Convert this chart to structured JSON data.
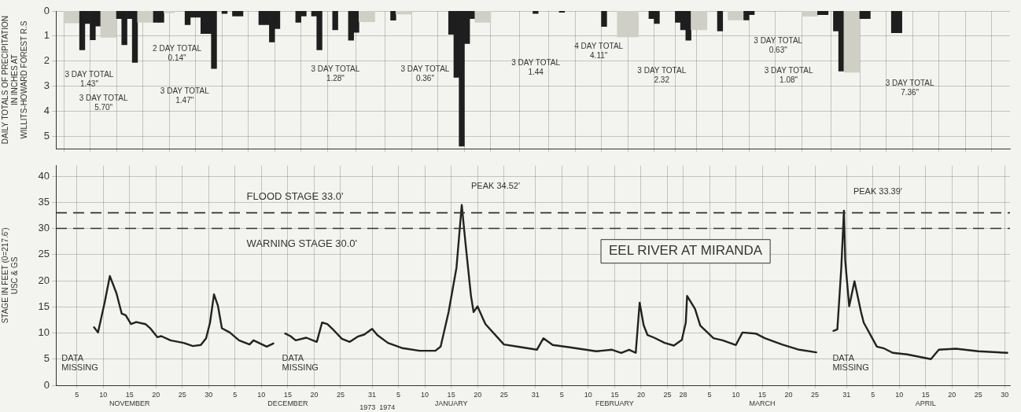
{
  "chart_data": [
    {
      "type": "bar",
      "ylabel": "DAILY TOTALS OF PRECIPITATION\nIN INCHES AT\nWILLITS-HOWARD FOREST R.S",
      "xlim": [
        "1973-11-01",
        "1974-05-01"
      ],
      "xticks": [
        {
          "value": "1973-11-05",
          "label": null
        },
        {
          "value": "1973-11-10",
          "label": null
        },
        {
          "value": "1973-11-15",
          "label": null
        },
        {
          "value": "1973-11-20",
          "label": null
        },
        {
          "value": "1973-11-25",
          "label": null
        },
        {
          "value": "1973-11-30",
          "label": null
        },
        {
          "value": "1973-12-05",
          "label": null
        },
        {
          "value": "1973-12-10",
          "label": null
        },
        {
          "value": "1973-12-15",
          "label": null
        },
        {
          "value": "1973-12-20",
          "label": null
        },
        {
          "value": "1973-12-25",
          "label": null
        },
        {
          "value": "1973-12-31",
          "label": null
        },
        {
          "value": "1974-01-05",
          "label": null
        },
        {
          "value": "1974-01-10",
          "label": null
        },
        {
          "value": "1974-01-15",
          "label": null
        },
        {
          "value": "1974-01-20",
          "label": null
        },
        {
          "value": "1974-01-25",
          "label": null
        },
        {
          "value": "1974-01-31",
          "label": null
        },
        {
          "value": "1974-02-05",
          "label": null
        },
        {
          "value": "1974-02-10",
          "label": null
        },
        {
          "value": "1974-02-15",
          "label": null
        },
        {
          "value": "1974-02-20",
          "label": null
        },
        {
          "value": "1974-02-25",
          "label": null
        },
        {
          "value": "1974-02-28",
          "label": null
        },
        {
          "value": "1974-03-05",
          "label": null
        },
        {
          "value": "1974-03-10",
          "label": null
        },
        {
          "value": "1974-03-15",
          "label": null
        },
        {
          "value": "1974-03-20",
          "label": null
        },
        {
          "value": "1974-03-25",
          "label": null
        },
        {
          "value": "1974-03-31",
          "label": null
        },
        {
          "value": "1974-04-05",
          "label": null
        },
        {
          "value": "1974-04-10",
          "label": null
        },
        {
          "value": "1974-04-15",
          "label": null
        },
        {
          "value": "1974-04-20",
          "label": null
        },
        {
          "value": "1974-04-25",
          "label": null
        },
        {
          "value": "1974-04-30",
          "label": null
        }
      ],
      "ylim": [
        5.5,
        0
      ],
      "yticks": [
        0,
        1,
        2,
        3,
        4,
        5
      ],
      "grid": true,
      "tick_labels": "y",
      "x": [
        "1973-11-03",
        "1973-11-04",
        "1973-11-05",
        "1973-11-06",
        "1973-11-07",
        "1973-11-08",
        "1973-11-09",
        "1973-11-10",
        "1973-11-11",
        "1973-11-12",
        "1973-11-13",
        "1973-11-14",
        "1973-11-15",
        "1973-11-16",
        "1973-11-17",
        "1973-11-18",
        "1973-11-19",
        "1973-11-20",
        "1973-11-21",
        "1973-11-22",
        "1973-11-23",
        "1973-11-26",
        "1973-11-27",
        "1973-11-28",
        "1973-11-29",
        "1973-11-30",
        "1973-12-01",
        "1973-12-03",
        "1973-12-05",
        "1973-12-06",
        "1973-12-10",
        "1973-12-11",
        "1973-12-12",
        "1973-12-13",
        "1973-12-17",
        "1973-12-18",
        "1973-12-20",
        "1973-12-21",
        "1973-12-24",
        "1973-12-27",
        "1973-12-28",
        "1973-12-29",
        "1973-12-30",
        "1973-12-31",
        "1974-01-04",
        "1974-01-05",
        "1974-01-06",
        "1974-01-07",
        "1974-01-15",
        "1974-01-16",
        "1974-01-17",
        "1974-01-18",
        "1974-01-19",
        "1974-01-20",
        "1974-01-21",
        "1974-01-22",
        "1974-01-31",
        "1974-02-05",
        "1974-02-13",
        "1974-02-16",
        "1974-02-17",
        "1974-02-18",
        "1974-02-19",
        "1974-02-22",
        "1974-02-23",
        "1974-02-27",
        "1974-02-28",
        "1974-03-01",
        "1974-03-02",
        "1974-03-03",
        "1974-03-04",
        "1974-03-07",
        "1974-03-09",
        "1974-03-10",
        "1974-03-11",
        "1974-03-12",
        "1974-03-13",
        "1974-03-23",
        "1974-03-24",
        "1974-03-25",
        "1974-03-26",
        "1974-03-27",
        "1974-03-29",
        "1974-03-30",
        "1974-03-31",
        "1974-04-01",
        "1974-04-02",
        "1974-04-03",
        "1974-04-04",
        "1974-04-09",
        "1974-04-10"
      ],
      "values": [
        0.48,
        0.48,
        0.48,
        1.55,
        0.5,
        1.15,
        0.6,
        1.05,
        1.05,
        1.05,
        0.3,
        1.35,
        0.3,
        2.05,
        0.45,
        0.45,
        0.45,
        0.45,
        0.45,
        0.07,
        0.07,
        0.55,
        0.25,
        0.25,
        0.9,
        0.9,
        2.3,
        0.1,
        0.2,
        0.2,
        0.55,
        0.55,
        1.24,
        0.7,
        0.45,
        0.2,
        0.2,
        1.55,
        0.75,
        1.17,
        0.85,
        0.43,
        0.43,
        0.43,
        0.37,
        0.12,
        0.12,
        0.12,
        0.93,
        2.65,
        5.4,
        1.3,
        0.3,
        0.45,
        0.45,
        0.45,
        0.1,
        0.05,
        0.62,
        1.03,
        1.03,
        1.03,
        1.03,
        0.3,
        0.5,
        0.45,
        0.75,
        1.17,
        0.75,
        0.75,
        0.75,
        0.8,
        0.36,
        0.36,
        0.36,
        0.36,
        0.15,
        0.21,
        0.21,
        0.21,
        0.15,
        0.15,
        0.8,
        2.4,
        2.45,
        2.45,
        2.45,
        0.3,
        0.3,
        0.87,
        0.87
      ],
      "colors": [
        "#cfcfc6",
        "#cfcfc6",
        "#cfcfc6",
        "#1e1e1e",
        "#1e1e1e",
        "#1e1e1e",
        "#1e1e1e",
        "#cfcfc6",
        "#cfcfc6",
        "#cfcfc6",
        "#1e1e1e",
        "#1e1e1e",
        "#1e1e1e",
        "#1e1e1e",
        "#cfcfc6",
        "#cfcfc6",
        "#cfcfc6",
        "#1e1e1e",
        "#1e1e1e",
        "#cfcfc6",
        "#cfcfc6",
        "#1e1e1e",
        "#1e1e1e",
        "#1e1e1e",
        "#1e1e1e",
        "#1e1e1e",
        "#1e1e1e",
        "#1e1e1e",
        "#1e1e1e",
        "#1e1e1e",
        "#1e1e1e",
        "#1e1e1e",
        "#1e1e1e",
        "#1e1e1e",
        "#1e1e1e",
        "#1e1e1e",
        "#1e1e1e",
        "#1e1e1e",
        "#1e1e1e",
        "#1e1e1e",
        "#1e1e1e",
        "#cfcfc6",
        "#cfcfc6",
        "#cfcfc6",
        "#1e1e1e",
        "#cfcfc6",
        "#cfcfc6",
        "#cfcfc6",
        "#1e1e1e",
        "#1e1e1e",
        "#1e1e1e",
        "#1e1e1e",
        "#1e1e1e",
        "#cfcfc6",
        "#cfcfc6",
        "#cfcfc6",
        "#1e1e1e",
        "#1e1e1e",
        "#1e1e1e",
        "#cfcfc6",
        "#cfcfc6",
        "#cfcfc6",
        "#cfcfc6",
        "#1e1e1e",
        "#1e1e1e",
        "#1e1e1e",
        "#1e1e1e",
        "#1e1e1e",
        "#cfcfc6",
        "#cfcfc6",
        "#cfcfc6",
        "#1e1e1e",
        "#cfcfc6",
        "#cfcfc6",
        "#cfcfc6",
        "#1e1e1e",
        "#1e1e1e",
        "#cfcfc6",
        "#cfcfc6",
        "#cfcfc6",
        "#1e1e1e",
        "#1e1e1e",
        "#1e1e1e",
        "#1e1e1e",
        "#cfcfc6",
        "#cfcfc6",
        "#cfcfc6",
        "#1e1e1e",
        "#1e1e1e",
        "#1e1e1e",
        "#1e1e1e"
      ],
      "annotations": [
        "3 DAY TOTAL\n1.43\"",
        "3 DAY TOTAL\n5.70\"",
        "2 DAY TOTAL\n0.14\"",
        "3 DAY TOTAL\n1.47\"",
        "3 DAY TOTAL\n1.28\"",
        "3 DAY TOTAL\n0.36\"",
        "3 DAY TOTAL\n1.44",
        "4 DAY TOTAL\n4.11\"",
        "3 DAY TOTAL\n2.32",
        "3 DAY TOTAL\n0.63\"",
        "3 DAY TOTAL\n1.08\"",
        "3 DAY TOTAL\n7.36\""
      ]
    },
    {
      "type": "line",
      "title": "EEL RIVER AT MIRANDA",
      "ylabel": "STAGE IN FEET (0=217.6')\nUSC & GS",
      "xlim": [
        "1973-11-01",
        "1974-05-01"
      ],
      "xticks": [
        {
          "value": "1973-11-05",
          "label": "5"
        },
        {
          "value": "1973-11-10",
          "label": "10"
        },
        {
          "value": "1973-11-15",
          "label": "15\nNOVEMBER"
        },
        {
          "value": "1973-11-20",
          "label": "20"
        },
        {
          "value": "1973-11-25",
          "label": "25"
        },
        {
          "value": "1973-11-30",
          "label": "30"
        },
        {
          "value": "1973-12-05",
          "label": "5"
        },
        {
          "value": "1973-12-10",
          "label": "10"
        },
        {
          "value": "1973-12-15",
          "label": "15\nDECEMBER"
        },
        {
          "value": "1973-12-20",
          "label": "20"
        },
        {
          "value": "1973-12-25",
          "label": "25"
        },
        {
          "value": "1973-12-31",
          "label": "31"
        },
        {
          "value": "1974-01-05",
          "label": "5"
        },
        {
          "value": "1974-01-10",
          "label": "10"
        },
        {
          "value": "1974-01-15",
          "label": "15\nJANUARY"
        },
        {
          "value": "1974-01-20",
          "label": "20"
        },
        {
          "value": "1974-01-25",
          "label": "25"
        },
        {
          "value": "1974-01-31",
          "label": "31"
        },
        {
          "value": "1974-02-05",
          "label": "5"
        },
        {
          "value": "1974-02-10",
          "label": "10"
        },
        {
          "value": "1974-02-15",
          "label": "15\nFEBRUARY"
        },
        {
          "value": "1974-02-20",
          "label": "20"
        },
        {
          "value": "1974-02-25",
          "label": "25"
        },
        {
          "value": "1974-02-28",
          "label": "28"
        },
        {
          "value": "1974-03-05",
          "label": "5"
        },
        {
          "value": "1974-03-10",
          "label": "10"
        },
        {
          "value": "1974-03-15",
          "label": "15\nMARCH"
        },
        {
          "value": "1974-03-20",
          "label": "20"
        },
        {
          "value": "1974-03-25",
          "label": "25"
        },
        {
          "value": "1974-03-31",
          "label": "31"
        },
        {
          "value": "1974-04-05",
          "label": "5"
        },
        {
          "value": "1974-04-10",
          "label": "10"
        },
        {
          "value": "1974-04-15",
          "label": "15\nAPRIL"
        },
        {
          "value": "1974-04-20",
          "label": "20"
        },
        {
          "value": "1974-04-25",
          "label": "25"
        },
        {
          "value": "1974-04-30",
          "label": "30"
        }
      ],
      "ylim": [
        0,
        42
      ],
      "yticks": [
        0,
        5,
        10,
        15,
        20,
        25,
        30,
        35,
        40
      ],
      "grid": true,
      "color": "#222222",
      "x": [
        "1973-11-08T06:00",
        "1973-11-09",
        "1973-11-10T06:00",
        "1973-11-11T06:00",
        "1973-11-12T12:00",
        "1973-11-13T12:00",
        "1973-11-14T06:00",
        "1973-11-15T06:00",
        "1973-11-16T06:00",
        "1973-11-18",
        "1973-11-19",
        "1973-11-20T06:00",
        "1973-11-21",
        "1973-11-22T18:00",
        "1973-11-25T06:00",
        "1973-11-27",
        "1973-11-28T12:00",
        "1973-11-29T12:00",
        "1973-11-30T06:00",
        "1973-12-01",
        "1973-12-01T18:00",
        "1973-12-02T12:00",
        "1973-12-04",
        "1973-12-05T18:00",
        "1973-12-07T18:00",
        "1973-12-08T12:00",
        "1973-12-09T18:00",
        "1973-12-11",
        "1973-12-12T06:00",
        "1973-12-13T12:00",
        "1973-12-14T12:00",
        "1973-12-15T12:00",
        "1973-12-16T12:00",
        "1973-12-18T12:00",
        "1973-12-20T12:00",
        "1973-12-21T12:00",
        "1973-12-22T12:00",
        "1973-12-23T18:00",
        "1973-12-25T06:00",
        "1973-12-26T18:00",
        "1973-12-28T06:00",
        "1973-12-29T12:00",
        "1973-12-31",
        "1974-01-01",
        "1974-01-03",
        "1974-01-05T18:00",
        "1974-01-09",
        "1974-01-12",
        "1974-01-13",
        "1974-01-14T12:00",
        "1974-01-16",
        "1974-01-17",
        "1974-01-17T18:00",
        "1974-01-18T18:00",
        "1974-01-19T06:00",
        "1974-01-20",
        "1974-01-21",
        "1974-01-21T12:00",
        "1974-01-25",
        "1974-01-27T12:00",
        "1974-01-31T06:00",
        "1974-02-01T12:00",
        "1974-02-03T06:00",
        "1974-02-06T06:00",
        "1974-02-11T12:00",
        "1974-02-14T12:00",
        "1974-02-16T06:00",
        "1974-02-17T18:00",
        "1974-02-19",
        "1974-02-19T18:00",
        "1974-02-20T12:00",
        "1974-02-21T06:00",
        "1974-02-22T12:00",
        "1974-02-24T12:00",
        "1974-02-26T06:00",
        "1974-02-27T18:00",
        "1974-02-28T12:00",
        "1974-02-28T18:00",
        "1974-03-02T06:00",
        "1974-03-03T06:00",
        "1974-03-05T18:00",
        "1974-03-07T12:00",
        "1974-03-10",
        "1974-03-11T06:00",
        "1974-03-13T18:00",
        "1974-03-15T12:00",
        "1974-03-18T18:00",
        "1974-03-22",
        "1974-03-25T06:00",
        "1974-03-26T12:00",
        "1974-03-28T12:00",
        "1974-03-29T06:00",
        "1974-03-30",
        "1974-03-30T12:00",
        "1974-03-30T18:00",
        "1974-03-31T12:00",
        "1974-04-01T12:00",
        "1974-04-02T18:00",
        "1974-04-03T06:00",
        "1974-04-05T18:00",
        "1974-04-07",
        "1974-04-08T18:00",
        "1974-04-11T12:00",
        "1974-04-16",
        "1974-04-17T12:00",
        "1974-04-20T18:00",
        "1974-04-25",
        "1974-04-30T12:00"
      ],
      "values": [
        11.1,
        10.1,
        15.8,
        20.9,
        17.6,
        13.7,
        13.4,
        11.7,
        12.1,
        11.7,
        10.8,
        9.2,
        9.4,
        8.6,
        8.1,
        7.5,
        7.7,
        9.0,
        12.0,
        17.4,
        15.2,
        10.9,
        10.1,
        8.6,
        7.8,
        8.6,
        8.0,
        7.4,
        8.0,
        null,
        9.9,
        9.4,
        8.6,
        9.1,
        8.3,
        12.0,
        11.7,
        10.5,
        8.9,
        8.3,
        9.3,
        9.7,
        10.8,
        9.6,
        8.1,
        7.1,
        6.6,
        6.6,
        7.4,
        14.0,
        22.5,
        34.5,
        26.8,
        17.1,
        14.0,
        15.1,
        12.8,
        11.7,
        7.8,
        7.4,
        6.8,
        9.0,
        7.7,
        7.3,
        6.5,
        6.8,
        6.2,
        6.8,
        6.2,
        15.8,
        11.5,
        9.6,
        9.1,
        8.1,
        7.6,
        8.7,
        12.0,
        17.1,
        14.6,
        11.4,
        9.0,
        8.6,
        7.7,
        10.1,
        9.9,
        9.0,
        7.8,
        6.8,
        6.3,
        null,
        10.4,
        10.7,
        22.5,
        33.4,
        23.8,
        15.1,
        19.9,
        14.0,
        12.0,
        7.4,
        7.1,
        6.2,
        5.9,
        5.0,
        6.8,
        7.0,
        6.5,
        6.2
      ],
      "ref_lines": [
        {
          "axis": "y",
          "value": 33,
          "label": "FLOOD STAGE 33.0'",
          "color": "#333333",
          "line_style": "dashed"
        },
        {
          "axis": "y",
          "value": 30,
          "label": "WARNING STAGE 30.0'",
          "color": "#333333",
          "line_style": "dashed"
        }
      ],
      "annotations": [
        {
          "text": "PEAK 34.52'",
          "x": "1974-01-17",
          "y": 34.5
        },
        {
          "text": "PEAK 33.39'",
          "x": "1974-03-30T12:00",
          "y": 33.4
        },
        "DATA\nMISSING",
        "DATA\nMISSING",
        "DATA\nMISSING",
        "1973  1974"
      ]
    }
  ]
}
